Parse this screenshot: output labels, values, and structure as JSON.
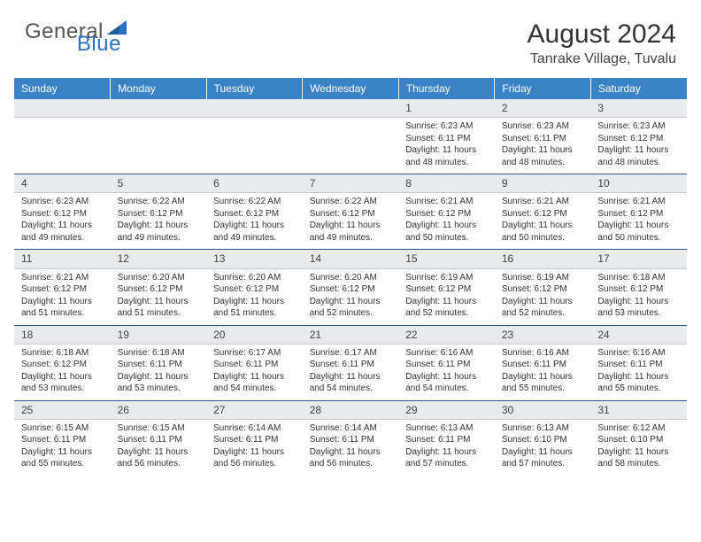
{
  "logo": {
    "general": "General",
    "blue": "Blue"
  },
  "title": "August 2024",
  "location": "Tanrake Village, Tuvalu",
  "weekdays": [
    "Sunday",
    "Monday",
    "Tuesday",
    "Wednesday",
    "Thursday",
    "Friday",
    "Saturday"
  ],
  "colors": {
    "header_bg": "#3b82c4",
    "row_separator": "#2b5a8a",
    "daynum_bg": "#e8eaec",
    "logo_blue": "#2b72c4"
  },
  "weeks": [
    [
      null,
      null,
      null,
      null,
      {
        "n": "1",
        "sr": "6:23 AM",
        "ss": "6:11 PM",
        "dl": "11 hours and 48 minutes."
      },
      {
        "n": "2",
        "sr": "6:23 AM",
        "ss": "6:11 PM",
        "dl": "11 hours and 48 minutes."
      },
      {
        "n": "3",
        "sr": "6:23 AM",
        "ss": "6:12 PM",
        "dl": "11 hours and 48 minutes."
      }
    ],
    [
      {
        "n": "4",
        "sr": "6:23 AM",
        "ss": "6:12 PM",
        "dl": "11 hours and 49 minutes."
      },
      {
        "n": "5",
        "sr": "6:22 AM",
        "ss": "6:12 PM",
        "dl": "11 hours and 49 minutes."
      },
      {
        "n": "6",
        "sr": "6:22 AM",
        "ss": "6:12 PM",
        "dl": "11 hours and 49 minutes."
      },
      {
        "n": "7",
        "sr": "6:22 AM",
        "ss": "6:12 PM",
        "dl": "11 hours and 49 minutes."
      },
      {
        "n": "8",
        "sr": "6:21 AM",
        "ss": "6:12 PM",
        "dl": "11 hours and 50 minutes."
      },
      {
        "n": "9",
        "sr": "6:21 AM",
        "ss": "6:12 PM",
        "dl": "11 hours and 50 minutes."
      },
      {
        "n": "10",
        "sr": "6:21 AM",
        "ss": "6:12 PM",
        "dl": "11 hours and 50 minutes."
      }
    ],
    [
      {
        "n": "11",
        "sr": "6:21 AM",
        "ss": "6:12 PM",
        "dl": "11 hours and 51 minutes."
      },
      {
        "n": "12",
        "sr": "6:20 AM",
        "ss": "6:12 PM",
        "dl": "11 hours and 51 minutes."
      },
      {
        "n": "13",
        "sr": "6:20 AM",
        "ss": "6:12 PM",
        "dl": "11 hours and 51 minutes."
      },
      {
        "n": "14",
        "sr": "6:20 AM",
        "ss": "6:12 PM",
        "dl": "11 hours and 52 minutes."
      },
      {
        "n": "15",
        "sr": "6:19 AM",
        "ss": "6:12 PM",
        "dl": "11 hours and 52 minutes."
      },
      {
        "n": "16",
        "sr": "6:19 AM",
        "ss": "6:12 PM",
        "dl": "11 hours and 52 minutes."
      },
      {
        "n": "17",
        "sr": "6:18 AM",
        "ss": "6:12 PM",
        "dl": "11 hours and 53 minutes."
      }
    ],
    [
      {
        "n": "18",
        "sr": "6:18 AM",
        "ss": "6:12 PM",
        "dl": "11 hours and 53 minutes."
      },
      {
        "n": "19",
        "sr": "6:18 AM",
        "ss": "6:11 PM",
        "dl": "11 hours and 53 minutes."
      },
      {
        "n": "20",
        "sr": "6:17 AM",
        "ss": "6:11 PM",
        "dl": "11 hours and 54 minutes."
      },
      {
        "n": "21",
        "sr": "6:17 AM",
        "ss": "6:11 PM",
        "dl": "11 hours and 54 minutes."
      },
      {
        "n": "22",
        "sr": "6:16 AM",
        "ss": "6:11 PM",
        "dl": "11 hours and 54 minutes."
      },
      {
        "n": "23",
        "sr": "6:16 AM",
        "ss": "6:11 PM",
        "dl": "11 hours and 55 minutes."
      },
      {
        "n": "24",
        "sr": "6:16 AM",
        "ss": "6:11 PM",
        "dl": "11 hours and 55 minutes."
      }
    ],
    [
      {
        "n": "25",
        "sr": "6:15 AM",
        "ss": "6:11 PM",
        "dl": "11 hours and 55 minutes."
      },
      {
        "n": "26",
        "sr": "6:15 AM",
        "ss": "6:11 PM",
        "dl": "11 hours and 56 minutes."
      },
      {
        "n": "27",
        "sr": "6:14 AM",
        "ss": "6:11 PM",
        "dl": "11 hours and 56 minutes."
      },
      {
        "n": "28",
        "sr": "6:14 AM",
        "ss": "6:11 PM",
        "dl": "11 hours and 56 minutes."
      },
      {
        "n": "29",
        "sr": "6:13 AM",
        "ss": "6:11 PM",
        "dl": "11 hours and 57 minutes."
      },
      {
        "n": "30",
        "sr": "6:13 AM",
        "ss": "6:10 PM",
        "dl": "11 hours and 57 minutes."
      },
      {
        "n": "31",
        "sr": "6:12 AM",
        "ss": "6:10 PM",
        "dl": "11 hours and 58 minutes."
      }
    ]
  ],
  "labels": {
    "sunrise": "Sunrise:",
    "sunset": "Sunset:",
    "daylight": "Daylight:"
  }
}
